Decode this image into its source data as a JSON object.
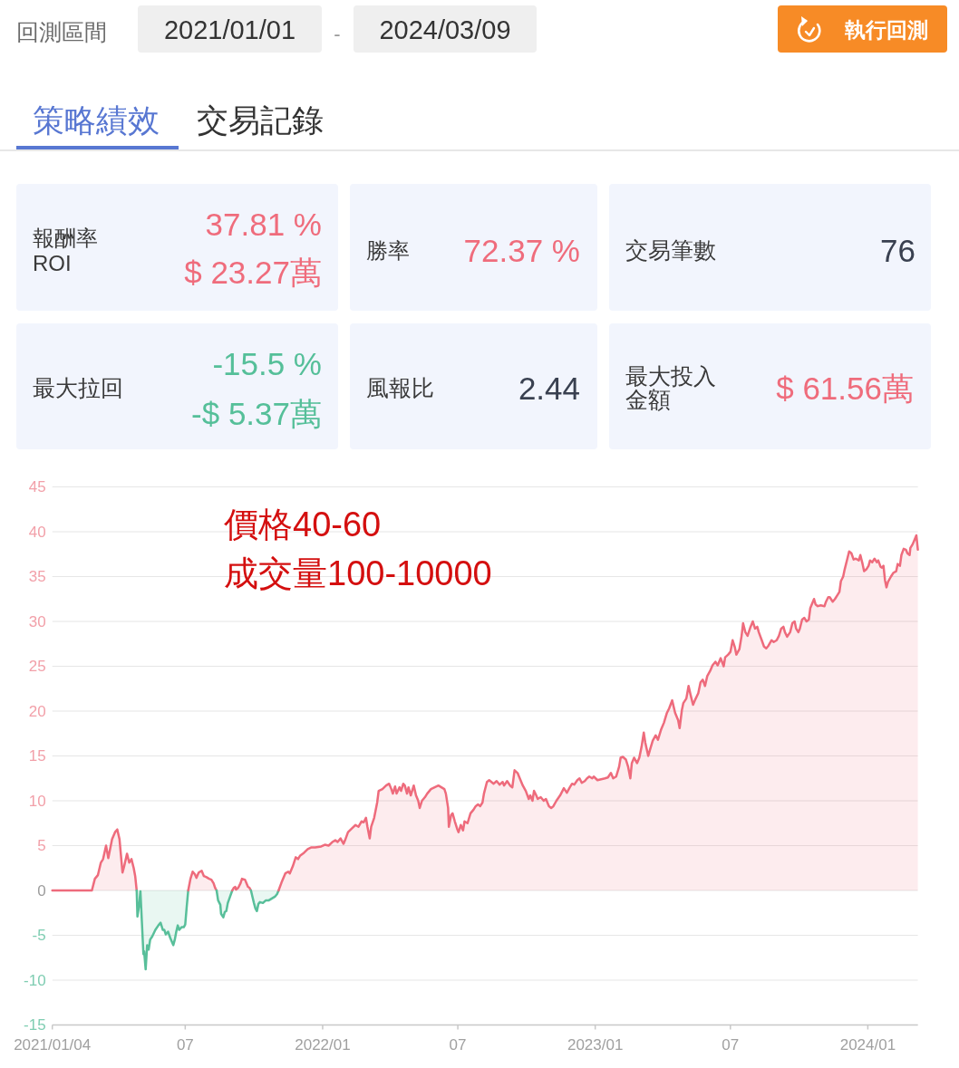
{
  "chart_data": [
    {
      "type": "other",
      "annotations": [
        "回測區間",
        "2021/01/01",
        "-",
        "2024/03/09",
        "執行回測",
        "策略績效",
        "交易記錄"
      ]
    },
    {
      "type": "other",
      "annotations": [
        "報酬率",
        "ROI",
        "37.81 %",
        "$ 23.27萬"
      ]
    },
    {
      "type": "other",
      "annotations": [
        "勝率",
        "72.37 %"
      ]
    },
    {
      "type": "other",
      "annotations": [
        "交易筆數",
        "76"
      ]
    },
    {
      "type": "other",
      "annotations": [
        "最大拉回",
        "-15.5 %",
        "-$ 5.37萬"
      ]
    },
    {
      "type": "other",
      "annotations": [
        "風報比",
        "2.44"
      ]
    },
    {
      "type": "other",
      "annotations": [
        "最大投入",
        "金額",
        "$ 61.56萬"
      ]
    },
    {
      "type": "area",
      "grid": "y",
      "ylim": [
        -15,
        45
      ],
      "yticks": [
        -15,
        -10,
        -5,
        0,
        5,
        10,
        15,
        20,
        25,
        30,
        35,
        40,
        45
      ],
      "xlim": [
        "2021-01-04",
        "2024-03-08"
      ],
      "xticks": [
        {
          "value": "2021-01-04",
          "label": "2021/01/04"
        },
        {
          "value": "2021-07-01",
          "label": "07"
        },
        {
          "value": "2022-01-01",
          "label": "2022/01"
        },
        {
          "value": "2022-07-01",
          "label": "07"
        },
        {
          "value": "2023-01-01",
          "label": "2023/01"
        },
        {
          "value": "2023-07-01",
          "label": "07"
        },
        {
          "value": "2024-01-01",
          "label": "2024/01"
        }
      ],
      "annotations": [
        "價格40-60",
        "成交量100-10000"
      ],
      "series": [
        {
          "color": "#ee6b7c",
          "x": [
            "2021-01-04",
            "2021-02-26",
            "2021-03-02",
            "2021-03-06",
            "2021-03-10",
            "2021-03-13",
            "2021-03-17",
            "2021-03-20",
            "2021-03-25",
            "2021-03-29",
            "2021-04-01",
            "2021-04-04",
            "2021-04-08",
            "2021-04-10",
            "2021-04-14",
            "2021-04-17",
            "2021-04-20",
            "2021-04-23",
            "2021-04-25",
            "2021-04-27"
          ],
          "values": [
            0,
            0,
            1.3,
            1.7,
            3.1,
            3.5,
            5.0,
            3.6,
            5.7,
            6.5,
            6.8,
            5.7,
            2.0,
            2.6,
            4.1,
            3.1,
            3.5,
            2.5,
            1.6,
            0
          ]
        },
        {
          "color": "#58bf9a",
          "x": [
            "2021-04-27",
            "2021-04-28",
            "2021-04-30",
            "2021-05-02",
            "2021-05-06",
            "2021-05-07",
            "2021-05-09",
            "2021-05-11",
            "2021-05-13",
            "2021-05-15",
            "2021-05-18",
            "2021-05-22",
            "2021-05-26",
            "2021-05-29",
            "2021-06-01",
            "2021-06-03",
            "2021-06-05",
            "2021-06-08",
            "2021-06-11",
            "2021-06-15",
            "2021-06-17",
            "2021-06-19",
            "2021-06-21",
            "2021-06-23",
            "2021-06-26",
            "2021-06-29",
            "2021-07-01",
            "2021-07-03",
            "2021-07-05"
          ],
          "values": [
            0,
            -2.9,
            -1.8,
            -0.1,
            -7.1,
            -6.8,
            -8.8,
            -6.1,
            -6.6,
            -5.5,
            -5.1,
            -4.4,
            -3.9,
            -3.6,
            -4.4,
            -4.4,
            -4.9,
            -4.6,
            -5.3,
            -6.1,
            -5.5,
            -4.6,
            -3.9,
            -4.4,
            -4.1,
            -4.1,
            -3.8,
            -1.8,
            0
          ]
        },
        {
          "color": "#ee6b7c",
          "x": [
            "2021-07-05",
            "2021-07-08",
            "2021-07-11",
            "2021-07-14",
            "2021-07-16",
            "2021-07-19",
            "2021-07-23",
            "2021-07-26",
            "2021-07-29",
            "2021-08-02",
            "2021-08-05",
            "2021-08-08",
            "2021-08-10",
            "2021-08-12"
          ],
          "values": [
            0,
            1.3,
            2.1,
            1.8,
            1.4,
            2.0,
            2.2,
            1.6,
            1.5,
            1.3,
            1.2,
            0.8,
            0.3,
            0
          ]
        },
        {
          "color": "#58bf9a",
          "x": [
            "2021-08-12",
            "2021-08-14",
            "2021-08-17",
            "2021-08-18",
            "2021-08-21",
            "2021-08-23",
            "2021-08-25",
            "2021-08-27",
            "2021-08-30",
            "2021-09-02"
          ],
          "values": [
            0,
            -1.1,
            -1.6,
            -2.6,
            -3.0,
            -2.4,
            -2.3,
            -1.4,
            -0.7,
            0
          ]
        },
        {
          "color": "#ee6b7c",
          "x": [
            "2021-09-02",
            "2021-09-04",
            "2021-09-06",
            "2021-09-07",
            "2021-09-10",
            "2021-09-13",
            "2021-09-15",
            "2021-09-19",
            "2021-09-21",
            "2021-09-23",
            "2021-09-25",
            "2021-09-27"
          ],
          "values": [
            0,
            0.3,
            0.4,
            0.1,
            0.3,
            0.8,
            1.3,
            1.2,
            0.8,
            0.4,
            0.3,
            0
          ]
        },
        {
          "color": "#58bf9a",
          "x": [
            "2021-09-27",
            "2021-09-29",
            "2021-10-01",
            "2021-10-03",
            "2021-10-05",
            "2021-10-07",
            "2021-10-09",
            "2021-10-13",
            "2021-10-17",
            "2021-10-21",
            "2021-10-25",
            "2021-10-29",
            "2021-11-01",
            "2021-11-03"
          ],
          "values": [
            0,
            -0.7,
            -1.4,
            -2.0,
            -2.3,
            -1.5,
            -1.3,
            -1.4,
            -1.1,
            -1.1,
            -0.9,
            -0.7,
            -0.4,
            0
          ]
        },
        {
          "color": "#ee6b7c",
          "x": [
            "2021-11-03",
            "2021-11-07",
            "2021-11-12",
            "2021-11-16",
            "2021-11-18",
            "2021-11-22",
            "2021-11-26",
            "2021-11-29",
            "2021-12-02",
            "2021-12-07",
            "2021-12-12",
            "2021-12-17",
            "2021-12-22",
            "2021-12-30",
            "2022-01-04",
            "2022-01-09",
            "2022-01-14",
            "2022-01-18",
            "2022-01-21",
            "2022-01-25",
            "2022-01-29",
            "2022-01-31",
            "2022-02-04",
            "2022-02-09",
            "2022-02-14",
            "2022-02-18",
            "2022-02-22",
            "2022-02-25",
            "2022-02-28",
            "2022-03-02",
            "2022-03-05",
            "2022-03-07",
            "2022-03-11",
            "2022-03-15",
            "2022-03-17",
            "2022-03-22",
            "2022-03-27",
            "2022-03-31",
            "2022-04-03",
            "2022-04-05",
            "2022-04-08",
            "2022-04-10",
            "2022-04-14",
            "2022-04-16",
            "2022-04-19",
            "2022-04-21",
            "2022-04-24",
            "2022-04-26",
            "2022-04-29",
            "2022-05-03",
            "2022-05-06",
            "2022-05-09",
            "2022-05-11",
            "2022-05-14",
            "2022-05-18",
            "2022-05-21",
            "2022-05-26",
            "2022-05-31",
            "2022-06-05",
            "2022-06-09",
            "2022-06-13",
            "2022-06-15",
            "2022-06-18",
            "2022-06-19",
            "2022-06-22",
            "2022-06-24",
            "2022-06-27",
            "2022-06-30",
            "2022-07-02",
            "2022-07-05",
            "2022-07-08",
            "2022-07-10",
            "2022-07-14",
            "2022-07-18",
            "2022-07-22",
            "2022-07-25",
            "2022-07-28",
            "2022-07-31",
            "2022-08-03",
            "2022-08-05",
            "2022-08-09",
            "2022-08-12",
            "2022-08-15",
            "2022-08-18",
            "2022-08-22",
            "2022-08-26",
            "2022-08-30",
            "2022-09-01",
            "2022-09-05",
            "2022-09-09",
            "2022-09-12",
            "2022-09-15",
            "2022-09-19",
            "2022-09-22",
            "2022-09-26",
            "2022-09-30",
            "2022-10-04",
            "2022-10-06",
            "2022-10-09",
            "2022-10-11",
            "2022-10-14",
            "2022-10-16",
            "2022-10-20",
            "2022-10-24",
            "2022-10-27",
            "2022-10-31",
            "2022-11-03",
            "2022-11-06",
            "2022-11-10",
            "2022-11-15",
            "2022-11-20",
            "2022-11-24",
            "2022-11-28",
            "2022-12-01",
            "2022-12-04",
            "2022-12-08",
            "2022-12-11",
            "2022-12-14",
            "2022-12-18",
            "2022-12-21",
            "2022-12-24",
            "2022-12-28",
            "2022-12-30",
            "2023-01-04",
            "2023-01-09",
            "2023-01-14",
            "2023-01-18",
            "2023-01-22",
            "2023-01-25",
            "2023-01-29",
            "2023-02-02",
            "2023-02-04",
            "2023-02-07",
            "2023-02-11",
            "2023-02-14",
            "2023-02-17",
            "2023-02-19",
            "2023-02-22",
            "2023-02-26",
            "2023-03-01",
            "2023-03-04",
            "2023-03-07",
            "2023-03-09",
            "2023-03-13",
            "2023-03-15",
            "2023-03-19",
            "2023-03-23",
            "2023-03-26",
            "2023-03-30",
            "2023-04-03",
            "2023-04-07",
            "2023-04-10",
            "2023-04-14",
            "2023-04-18",
            "2023-04-22",
            "2023-04-24",
            "2023-04-27",
            "2023-04-29",
            "2023-05-03",
            "2023-05-06",
            "2023-05-09",
            "2023-05-12",
            "2023-05-15",
            "2023-05-19",
            "2023-05-22",
            "2023-05-25",
            "2023-05-28",
            "2023-05-31",
            "2023-06-04",
            "2023-06-07",
            "2023-06-11",
            "2023-06-14",
            "2023-06-18",
            "2023-06-22",
            "2023-06-24",
            "2023-06-28",
            "2023-07-01",
            "2023-07-04",
            "2023-07-07",
            "2023-07-09",
            "2023-07-13",
            "2023-07-16",
            "2023-07-18",
            "2023-07-21",
            "2023-07-24",
            "2023-07-28",
            "2023-07-31",
            "2023-08-03",
            "2023-08-06",
            "2023-08-08",
            "2023-08-12",
            "2023-08-15",
            "2023-08-18",
            "2023-08-21",
            "2023-08-25",
            "2023-08-28",
            "2023-09-01",
            "2023-09-04",
            "2023-09-07",
            "2023-09-10",
            "2023-09-12",
            "2023-09-15",
            "2023-09-19",
            "2023-09-22",
            "2023-09-25",
            "2023-09-27",
            "2023-09-30",
            "2023-10-02",
            "2023-10-05",
            "2023-10-08",
            "2023-10-11",
            "2023-10-14",
            "2023-10-16",
            "2023-10-19",
            "2023-10-21",
            "2023-10-23",
            "2023-10-26",
            "2023-10-30",
            "2023-11-04",
            "2023-11-06",
            "2023-11-09",
            "2023-11-11",
            "2023-11-15",
            "2023-11-18",
            "2023-11-21",
            "2023-11-24",
            "2023-11-26",
            "2023-11-29",
            "2023-12-01",
            "2023-12-04",
            "2023-12-07",
            "2023-12-10",
            "2023-12-13",
            "2023-12-16",
            "2023-12-20",
            "2023-12-22",
            "2023-12-25",
            "2023-12-27",
            "2023-12-30",
            "2024-01-02",
            "2024-01-04",
            "2024-01-07",
            "2024-01-10",
            "2024-01-13",
            "2024-01-15",
            "2024-01-18",
            "2024-01-20",
            "2024-01-22",
            "2024-01-24",
            "2024-01-26",
            "2024-01-28",
            "2024-02-01",
            "2024-02-04",
            "2024-02-08",
            "2024-02-10",
            "2024-02-13",
            "2024-02-15",
            "2024-02-18",
            "2024-02-21",
            "2024-02-23",
            "2024-02-26",
            "2024-02-27",
            "2024-03-01",
            "2024-03-03",
            "2024-03-06",
            "2024-03-08"
          ],
          "values": [
            0,
            0.9,
            1.9,
            2.1,
            1.9,
            2.7,
            3.7,
            3.5,
            3.9,
            4.2,
            4.6,
            4.8,
            4.8,
            4.9,
            5.1,
            5.0,
            5.4,
            5.6,
            5.4,
            5.8,
            5.2,
            5.6,
            6.5,
            6.9,
            7.3,
            7.1,
            7.7,
            7.6,
            8.1,
            7.1,
            5.8,
            7.1,
            8.1,
            9.8,
            11.1,
            11.3,
            11.7,
            11.9,
            11.3,
            10.8,
            11.6,
            10.8,
            11.5,
            11.1,
            11.9,
            11.7,
            10.8,
            11.5,
            10.6,
            11.7,
            10.6,
            10.0,
            9.2,
            10.0,
            10.4,
            10.8,
            11.3,
            11.5,
            11.7,
            11.5,
            11.3,
            10.8,
            9.2,
            7.1,
            8.4,
            8.6,
            7.7,
            6.9,
            6.5,
            7.3,
            6.7,
            7.7,
            7.5,
            8.6,
            9.0,
            9.4,
            9.6,
            9.4,
            9.8,
            10.8,
            12.1,
            12.3,
            12.1,
            11.9,
            12.2,
            11.8,
            12.1,
            11.7,
            12.2,
            11.7,
            11.5,
            13.4,
            13.1,
            12.5,
            11.7,
            11.1,
            10.2,
            10.6,
            10.0,
            11.1,
            10.6,
            10.2,
            10.4,
            10.0,
            10.2,
            9.4,
            9.2,
            9.4,
            10.0,
            10.6,
            11.4,
            10.9,
            11.5,
            11.9,
            11.8,
            12.3,
            12.5,
            12.0,
            12.2,
            12.5,
            12.7,
            12.5,
            12.7,
            12.3,
            12.4,
            12.5,
            12.6,
            13.1,
            12.5,
            12.7,
            13.8,
            14.8,
            14.9,
            14.6,
            13.8,
            12.5,
            14.2,
            14.8,
            14.2,
            14.8,
            16.0,
            17.6,
            16.5,
            15.0,
            15.6,
            16.7,
            17.3,
            16.8,
            17.9,
            18.7,
            19.8,
            20.3,
            21.2,
            19.8,
            19.0,
            18.1,
            20.1,
            20.9,
            21.4,
            22.8,
            21.7,
            20.7,
            21.3,
            22.0,
            23.2,
            23.5,
            22.8,
            23.9,
            24.5,
            25.1,
            25.5,
            25.1,
            25.9,
            25.0,
            26.0,
            26.3,
            26.6,
            27.9,
            27.1,
            26.3,
            26.9,
            28.4,
            29.8,
            28.8,
            28.4,
            29.4,
            30.0,
            29.2,
            29.4,
            28.8,
            27.9,
            27.2,
            27.0,
            27.3,
            27.9,
            27.7,
            27.9,
            28.4,
            29.2,
            29.4,
            28.8,
            28.3,
            28.8,
            29.8,
            30.0,
            29.2,
            28.8,
            29.2,
            30.2,
            30.4,
            30.0,
            30.2,
            31.5,
            32.1,
            32.5,
            31.9,
            31.7,
            31.8,
            31.7,
            32.2,
            32.7,
            32.7,
            32.2,
            32.5,
            32.9,
            33.3,
            34.5,
            35.0,
            35.8,
            36.8,
            37.8,
            37.6,
            36.9,
            37.0,
            36.8,
            37.4,
            36.4,
            35.6,
            35.8,
            36.2,
            36.8,
            36.6,
            37.0,
            36.6,
            36.8,
            36.1,
            36.0,
            36.2,
            34.6,
            33.8,
            34.4,
            35.0,
            35.4,
            35.6,
            36.4,
            36.2,
            37.4,
            38.1,
            38.0,
            37.6,
            37.4,
            38.2,
            38.6,
            39.0,
            39.6,
            38.0
          ]
        }
      ]
    }
  ]
}
